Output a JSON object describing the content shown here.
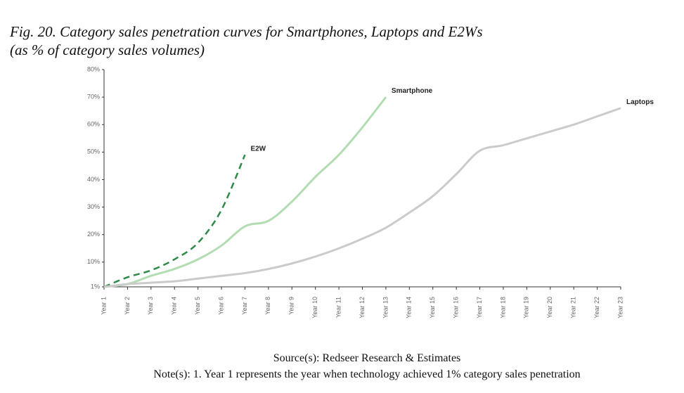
{
  "chart_data": {
    "type": "line",
    "title": "Fig. 20. Category sales penetration curves for Smartphones, Laptops and E2Ws",
    "subtitle": "(as % of category sales volumes)",
    "source": "Source(s): Redseer Research & Estimates",
    "note": "Note(s): 1. Year 1 represents the year when technology achieved 1% category sales penetration",
    "categories": [
      "Year 1",
      "Year 2",
      "Year 3",
      "Year 4",
      "Year 5",
      "Year 6",
      "Year 7",
      "Year 8",
      "Year 9",
      "Year 10",
      "Year 11",
      "Year 12",
      "Year 13",
      "Year 14",
      "Year 15",
      "Year 16",
      "Year 17",
      "Year 18",
      "Year 19",
      "Year 20",
      "Year 21",
      "Year 22",
      "Year 23"
    ],
    "ylim": [
      1,
      80
    ],
    "yticks": [
      {
        "value": 1,
        "label": "1%"
      },
      {
        "value": 10,
        "label": "10%"
      },
      {
        "value": 20,
        "label": "20%"
      },
      {
        "value": 30,
        "label": "30%"
      },
      {
        "value": 40,
        "label": "40%"
      },
      {
        "value": 50,
        "label": "50%"
      },
      {
        "value": 60,
        "label": "60%"
      },
      {
        "value": 70,
        "label": "70%"
      },
      {
        "value": 80,
        "label": "80%"
      }
    ],
    "grid": false,
    "series": [
      {
        "name": "E2W",
        "color": "#2e8b47",
        "style": "dashed",
        "values": [
          1,
          4.5,
          7,
          11,
          17,
          29,
          49,
          null,
          null,
          null,
          null,
          null,
          null,
          null,
          null,
          null,
          null,
          null,
          null,
          null,
          null,
          null,
          null
        ]
      },
      {
        "name": "Smartphone",
        "color": "#b2dcb2",
        "style": "solid",
        "values": [
          1,
          2,
          5,
          7.5,
          11,
          16,
          23,
          25,
          32,
          41,
          49,
          59,
          70,
          null,
          null,
          null,
          null,
          null,
          null,
          null,
          null,
          null,
          null
        ]
      },
      {
        "name": "Laptops",
        "color": "#cbcbcb",
        "style": "solid",
        "values": [
          1,
          2,
          2.5,
          3,
          4,
          5,
          6,
          7.5,
          9.5,
          12,
          15,
          18.5,
          22.5,
          28,
          34,
          42,
          50.5,
          52.5,
          55,
          57.5,
          60,
          63,
          66
        ]
      }
    ]
  }
}
